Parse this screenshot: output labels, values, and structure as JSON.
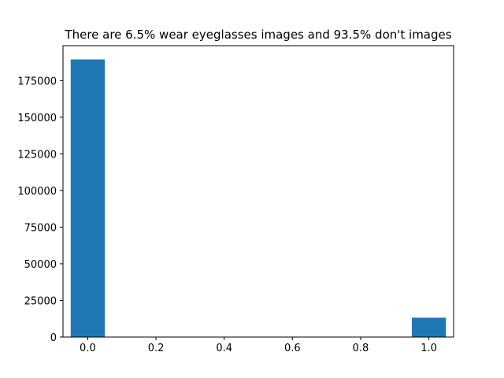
{
  "chart_data": {
    "type": "bar",
    "title": "There are 6.5% wear eyeglasses images and 93.5% don't images",
    "xlabel": "",
    "ylabel": "",
    "xlim": [
      -0.0725,
      1.0725
    ],
    "ylim": [
      0,
      198808
    ],
    "x_ticks": [
      0.0,
      0.2,
      0.4,
      0.6,
      0.8,
      1.0
    ],
    "x_tick_labels": [
      "0.0",
      "0.2",
      "0.4",
      "0.6",
      "0.8",
      "1.0"
    ],
    "y_ticks": [
      0,
      25000,
      50000,
      75000,
      100000,
      125000,
      150000,
      175000
    ],
    "y_tick_labels": [
      "0",
      "25000",
      "50000",
      "75000",
      "100000",
      "125000",
      "150000",
      "175000"
    ],
    "bar_width": 0.1,
    "bars": [
      {
        "x": 0.0,
        "value": 189406
      },
      {
        "x": 1.0,
        "value": 13193
      }
    ],
    "grid": false,
    "bar_color": "#1f77b4"
  }
}
